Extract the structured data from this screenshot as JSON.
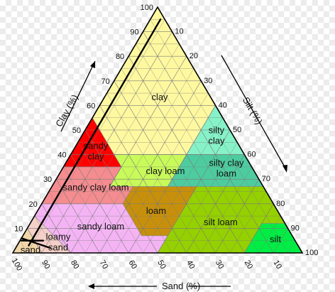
{
  "title": "",
  "axes": {
    "clay": {
      "title": "Clay (%)",
      "ticks": [
        "10",
        "20",
        "30",
        "40",
        "50",
        "60",
        "70",
        "80",
        "90",
        "100"
      ]
    },
    "silt": {
      "title": "Silt (%)",
      "ticks": [
        "10",
        "20",
        "30",
        "40",
        "50",
        "60",
        "70",
        "80",
        "90",
        "100"
      ]
    },
    "sand": {
      "title": "Sand (%)",
      "ticks": [
        "100",
        "90",
        "80",
        "70",
        "60",
        "50",
        "40",
        "30",
        "20",
        "10"
      ]
    }
  },
  "regions": [
    {
      "key": "clay",
      "label": "clay",
      "color": "#fef8a0"
    },
    {
      "key": "silty-clay",
      "label": "silty clay",
      "color": "#86f2c8"
    },
    {
      "key": "sandy-clay",
      "label": "sandy clay",
      "color": "#ff0000"
    },
    {
      "key": "clay-loam",
      "label": "clay loam",
      "color": "#c8fa5a"
    },
    {
      "key": "silty-clay-loam",
      "label": "silty clay loam",
      "color": "#4dcca0"
    },
    {
      "key": "sandy-clay-loam",
      "label": "sandy clay loam",
      "color": "#f58c90"
    },
    {
      "key": "loam",
      "label": "loam",
      "color": "#c8900a"
    },
    {
      "key": "silt-loam",
      "label": "silt loam",
      "color": "#95d000"
    },
    {
      "key": "silt",
      "label": "silt",
      "color": "#00ee44"
    },
    {
      "key": "sandy-loam",
      "label": "sandy loam",
      "color": "#f4b4f4"
    },
    {
      "key": "loamy-sand",
      "label": "loamy sand",
      "color": "#f5d0c8"
    },
    {
      "key": "sand",
      "label": "sand",
      "color": "#f2d6a8"
    }
  ],
  "colors": {
    "grid": "#7a7a7a",
    "outline": "#000000",
    "marker_line": "#000000"
  }
}
